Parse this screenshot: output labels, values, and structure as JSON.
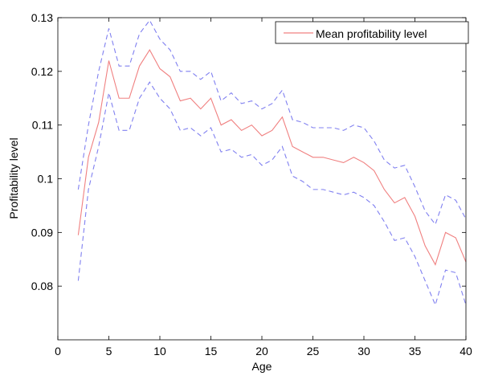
{
  "chart_data": {
    "type": "line",
    "title": "",
    "xlabel": "Age",
    "ylabel": "Profitability level",
    "xlim": [
      0,
      40
    ],
    "ylim": [
      0.07,
      0.13
    ],
    "xticks": [
      0,
      5,
      10,
      15,
      20,
      25,
      30,
      35,
      40
    ],
    "xtick_labels": [
      "0",
      "5",
      "10",
      "15",
      "20",
      "25",
      "30",
      "35",
      "40"
    ],
    "yticks": [
      0.08,
      0.09,
      0.1,
      0.11,
      0.12,
      0.13
    ],
    "ytick_labels": [
      "0.08",
      "0.09",
      "0.1",
      "0.11",
      "0.12",
      "0.13"
    ],
    "grid": false,
    "legend_position": "top-right",
    "x": [
      2,
      3,
      4,
      5,
      6,
      7,
      8,
      9,
      10,
      11,
      12,
      13,
      14,
      15,
      16,
      17,
      18,
      19,
      20,
      21,
      22,
      23,
      24,
      25,
      26,
      27,
      28,
      29,
      30,
      31,
      32,
      33,
      34,
      35,
      36,
      37,
      38,
      39,
      40
    ],
    "series": [
      {
        "name": "Mean profitability level",
        "color": "#f08080",
        "style": "solid",
        "values": [
          0.0895,
          0.104,
          0.1105,
          0.122,
          0.115,
          0.115,
          0.121,
          0.124,
          0.1205,
          0.119,
          0.1145,
          0.115,
          0.113,
          0.115,
          0.11,
          0.111,
          0.109,
          0.11,
          0.108,
          0.109,
          0.1115,
          0.106,
          0.105,
          0.104,
          0.104,
          0.1035,
          0.103,
          0.104,
          0.103,
          0.1015,
          0.098,
          0.0955,
          0.0965,
          0.093,
          0.0875,
          0.084,
          0.09,
          0.089,
          0.0845
        ]
      },
      {
        "color": "#8080f0",
        "style": "dashed",
        "values": [
          0.098,
          0.11,
          0.12,
          0.128,
          0.121,
          0.121,
          0.127,
          0.1295,
          0.126,
          0.124,
          0.12,
          0.12,
          0.1185,
          0.12,
          0.1145,
          0.116,
          0.114,
          0.1145,
          0.113,
          0.114,
          0.1165,
          0.111,
          0.1105,
          0.1095,
          0.1095,
          0.1095,
          0.109,
          0.11,
          0.1095,
          0.107,
          0.1035,
          0.102,
          0.1025,
          0.0985,
          0.094,
          0.0915,
          0.097,
          0.096,
          0.0925
        ]
      },
      {
        "color": "#8080f0",
        "style": "dashed",
        "values": [
          0.081,
          0.098,
          0.106,
          0.116,
          0.109,
          0.109,
          0.115,
          0.118,
          0.115,
          0.113,
          0.109,
          0.1095,
          0.108,
          0.1095,
          0.105,
          0.1055,
          0.104,
          0.1045,
          0.1025,
          0.1035,
          0.106,
          0.1005,
          0.0995,
          0.098,
          0.098,
          0.0975,
          0.097,
          0.0975,
          0.0965,
          0.095,
          0.092,
          0.0885,
          0.089,
          0.0855,
          0.081,
          0.0765,
          0.083,
          0.0825,
          0.0765
        ]
      }
    ]
  }
}
